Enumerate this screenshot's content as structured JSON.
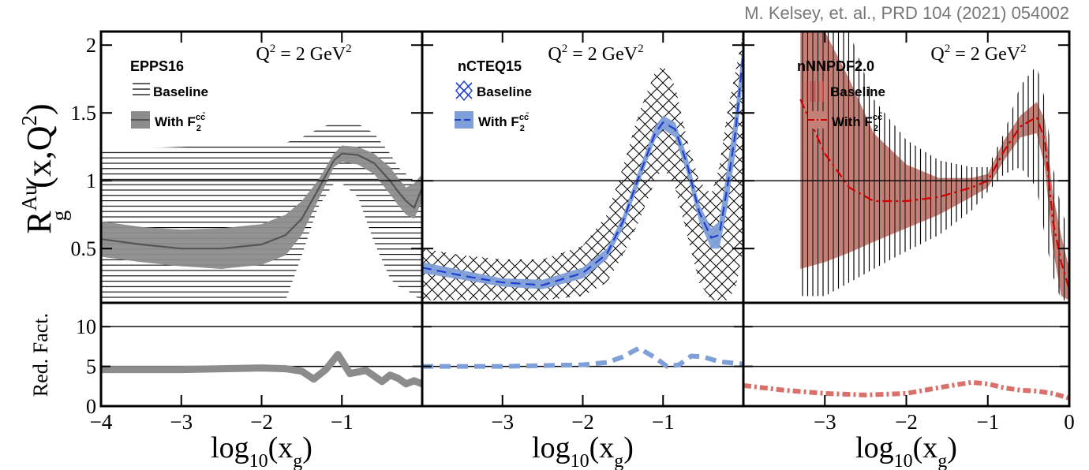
{
  "credit": "M. Kelsey, et. al., PRD 104 (2021) 054002",
  "y_label_main": {
    "base": "R",
    "sub": "g",
    "sup": "Au",
    "args": "(x,Q",
    "args_sup": "2",
    "args_close": ")"
  },
  "y_label_ratio": "Red. Fact.",
  "x_label": {
    "base": "log",
    "sub1": "10",
    "mid": "(x",
    "sub2": "g",
    "close": ")"
  },
  "q2_text": {
    "pre": "Q",
    "sup": "2",
    "post": " = 2 GeV",
    "sup2": "2"
  },
  "legend_common": {
    "baseline": "Baseline",
    "with": "With F",
    "with_sub": "2",
    "with_sup": "cc̄"
  },
  "colors": {
    "epps": "#8c8c8c",
    "epps_line": "#555555",
    "ncteq": "#7f9fd8",
    "ncteq_line": "#1f3fcf",
    "ncteq_mark": "#1f3fcf",
    "nnnpdf": "#c47f76",
    "nnnpdf_line": "#d10000",
    "nnnpdf_ratio": "#d9706a"
  },
  "chart_data": [
    {
      "type": "area",
      "panel": "EPPS16",
      "title": "EPPS16",
      "xlabel": "log10(x_g)",
      "ylabel": "R_g^Au (x,Q^2)",
      "xlim": [
        -4,
        0
      ],
      "ylim": [
        0.1,
        2.1
      ],
      "x_ticks": [
        -4,
        -3,
        -2,
        -1
      ],
      "y_ticks": [
        0.5,
        1,
        1.5,
        2
      ],
      "reference_lines": [
        1
      ],
      "series": [
        {
          "name": "Baseline",
          "style": "hatch-horizontal",
          "x": [
            -4,
            -3.5,
            -3,
            -2.5,
            -2,
            -1.7,
            -1.5,
            -1.3,
            -1.1,
            -1.0,
            -0.8,
            -0.6,
            -0.4,
            -0.3,
            -0.2,
            -0.1,
            0
          ],
          "low": [
            0.12,
            0.12,
            0.12,
            0.12,
            0.12,
            0.12,
            0.45,
            0.8,
            0.98,
            0.98,
            0.88,
            0.55,
            0.28,
            0.22,
            0.2,
            0.15,
            0.12
          ],
          "high": [
            1.22,
            1.24,
            1.25,
            1.26,
            1.26,
            1.28,
            1.32,
            1.38,
            1.43,
            1.44,
            1.42,
            1.35,
            1.2,
            1.1,
            1.05,
            1.0,
            1.0
          ]
        },
        {
          "name": "With F2cc",
          "style": "band",
          "x": [
            -4,
            -3.5,
            -3,
            -2.5,
            -2,
            -1.7,
            -1.5,
            -1.3,
            -1.1,
            -1.0,
            -0.8,
            -0.6,
            -0.4,
            -0.3,
            -0.2,
            -0.1,
            0
          ],
          "low": [
            0.44,
            0.4,
            0.37,
            0.35,
            0.38,
            0.45,
            0.6,
            0.85,
            1.1,
            1.14,
            1.12,
            1.05,
            0.9,
            0.82,
            0.75,
            0.72,
            0.85
          ],
          "high": [
            0.7,
            0.66,
            0.64,
            0.65,
            0.68,
            0.75,
            0.85,
            1.0,
            1.2,
            1.26,
            1.25,
            1.2,
            1.1,
            1.02,
            0.95,
            0.98,
            1.05
          ],
          "central": [
            0.57,
            0.53,
            0.5,
            0.5,
            0.53,
            0.6,
            0.72,
            0.93,
            1.15,
            1.2,
            1.19,
            1.13,
            1.0,
            0.92,
            0.85,
            0.8,
            0.95
          ]
        }
      ],
      "ratio": {
        "ylabel": "Red. Fact.",
        "ylim": [
          0,
          13
        ],
        "y_ticks": [
          0,
          5,
          10
        ],
        "reference_lines": [
          5,
          10
        ],
        "x": [
          -4,
          -3.5,
          -3,
          -2.5,
          -2,
          -1.7,
          -1.5,
          -1.35,
          -1.2,
          -1.05,
          -0.9,
          -0.7,
          -0.5,
          -0.4,
          -0.3,
          -0.2,
          -0.1,
          0
        ],
        "values": [
          4.6,
          4.6,
          4.6,
          4.7,
          4.8,
          4.7,
          4.4,
          3.4,
          4.6,
          6.5,
          4.1,
          4.5,
          3.1,
          3.9,
          3.5,
          2.8,
          3.2,
          2.8
        ]
      }
    },
    {
      "type": "area",
      "panel": "nCTEQ15",
      "title": "nCTEQ15",
      "xlim": [
        -4,
        0
      ],
      "ylim": [
        0.1,
        2.1
      ],
      "x_ticks": [
        -3,
        -2,
        -1
      ],
      "reference_lines": [
        1
      ],
      "series": [
        {
          "name": "Baseline",
          "style": "hatch-cross",
          "x": [
            -4,
            -3.5,
            -3,
            -2.5,
            -2,
            -1.7,
            -1.5,
            -1.3,
            -1.1,
            -1.0,
            -0.85,
            -0.7,
            -0.55,
            -0.4,
            -0.3,
            -0.2,
            -0.1,
            0
          ],
          "low": [
            0.12,
            0.12,
            0.12,
            0.12,
            0.15,
            0.25,
            0.45,
            0.7,
            1.0,
            1.1,
            0.95,
            0.6,
            0.25,
            0.12,
            0.12,
            0.12,
            0.2,
            0.5
          ],
          "high": [
            0.5,
            0.45,
            0.42,
            0.42,
            0.52,
            0.75,
            1.1,
            1.5,
            1.8,
            1.85,
            1.7,
            1.3,
            1.0,
            0.9,
            1.1,
            1.5,
            1.8,
            2.1
          ]
        },
        {
          "name": "With F2cc",
          "style": "band",
          "x": [
            -4,
            -3.5,
            -3,
            -2.5,
            -2,
            -1.7,
            -1.5,
            -1.3,
            -1.1,
            -1.0,
            -0.85,
            -0.7,
            -0.55,
            -0.4,
            -0.3,
            -0.2,
            -0.1,
            0
          ],
          "low": [
            0.32,
            0.27,
            0.22,
            0.2,
            0.28,
            0.42,
            0.65,
            0.98,
            1.3,
            1.38,
            1.32,
            1.05,
            0.7,
            0.5,
            0.5,
            0.8,
            1.2,
            1.8
          ],
          "high": [
            0.4,
            0.34,
            0.28,
            0.27,
            0.36,
            0.5,
            0.74,
            1.08,
            1.4,
            1.48,
            1.43,
            1.18,
            0.83,
            0.65,
            0.7,
            1.1,
            1.5,
            2.05
          ],
          "central": [
            0.36,
            0.3,
            0.25,
            0.23,
            0.32,
            0.46,
            0.7,
            1.03,
            1.35,
            1.43,
            1.38,
            1.12,
            0.77,
            0.58,
            0.6,
            0.95,
            1.35,
            1.95
          ]
        }
      ],
      "ratio": {
        "ylim": [
          0,
          13
        ],
        "reference_lines": [
          5,
          10
        ],
        "x": [
          -4,
          -3.5,
          -3,
          -2.5,
          -2,
          -1.7,
          -1.5,
          -1.3,
          -1.1,
          -0.95,
          -0.8,
          -0.65,
          -0.5,
          -0.3,
          -0.1,
          0
        ],
        "values": [
          5.0,
          5.0,
          5.0,
          5.1,
          5.2,
          5.5,
          6.2,
          7.3,
          6.1,
          5.0,
          5.2,
          6.3,
          6.2,
          5.6,
          5.4,
          5.3
        ]
      }
    },
    {
      "type": "area",
      "panel": "nNNPDF2.0",
      "title": "nNNPDF2.0",
      "xlim": [
        -4,
        0
      ],
      "ylim": [
        0.1,
        2.1
      ],
      "x_ticks": [
        -3,
        -2,
        -1,
        0
      ],
      "reference_lines": [
        1
      ],
      "series": [
        {
          "name": "Baseline",
          "style": "hatch-vertical",
          "x": [
            -3.3,
            -3.0,
            -2.7,
            -2.4,
            -2.0,
            -1.6,
            -1.2,
            -1.0,
            -0.8,
            -0.6,
            -0.4,
            -0.3,
            -0.2,
            -0.1,
            0
          ],
          "low": [
            0.15,
            0.15,
            0.25,
            0.35,
            0.48,
            0.6,
            0.78,
            0.92,
            1.05,
            1.1,
            0.95,
            0.6,
            0.3,
            0.12,
            0.12
          ],
          "high": [
            2.1,
            2.1,
            2.1,
            1.6,
            1.3,
            1.15,
            1.1,
            1.1,
            1.35,
            1.7,
            1.85,
            1.6,
            1.1,
            0.8,
            0.6
          ]
        },
        {
          "name": "With F2cc",
          "style": "band",
          "x": [
            -3.3,
            -3.0,
            -2.7,
            -2.4,
            -2.0,
            -1.6,
            -1.2,
            -1.0,
            -0.8,
            -0.6,
            -0.4,
            -0.3,
            -0.2,
            -0.1,
            0
          ],
          "low": [
            0.35,
            0.4,
            0.47,
            0.55,
            0.65,
            0.75,
            0.88,
            0.95,
            1.15,
            1.32,
            1.35,
            1.1,
            0.5,
            0.15,
            0.12
          ],
          "high": [
            2.1,
            2.1,
            1.75,
            1.35,
            1.12,
            1.02,
            1.02,
            1.05,
            1.3,
            1.48,
            1.58,
            1.45,
            0.9,
            0.6,
            0.35
          ],
          "central": [
            1.6,
            1.2,
            0.95,
            0.85,
            0.85,
            0.88,
            0.95,
            1.0,
            1.22,
            1.4,
            1.47,
            1.3,
            0.7,
            0.4,
            0.2
          ]
        }
      ],
      "ratio": {
        "ylim": [
          0,
          13
        ],
        "reference_lines": [
          5,
          10
        ],
        "x": [
          -4,
          -3.5,
          -3,
          -2.5,
          -2,
          -1.5,
          -1.2,
          -1.0,
          -0.8,
          -0.6,
          -0.4,
          -0.2,
          0
        ],
        "values": [
          2.6,
          2.0,
          1.6,
          1.4,
          1.6,
          2.5,
          3.0,
          2.8,
          2.3,
          2.0,
          1.9,
          1.6,
          1.0
        ]
      }
    }
  ]
}
